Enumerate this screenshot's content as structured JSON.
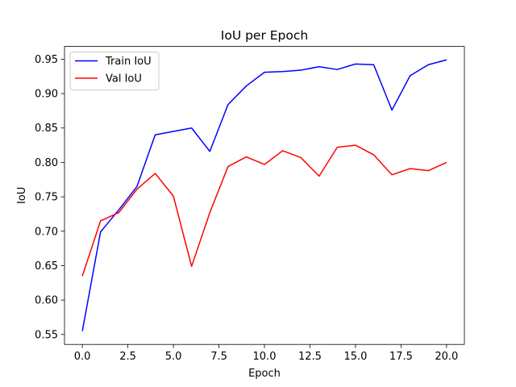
{
  "chart_data": {
    "type": "line",
    "title": "IoU per Epoch",
    "xlabel": "Epoch",
    "ylabel": "IoU",
    "xlim": [
      -0.98,
      20.98
    ],
    "ylim": [
      0.5355,
      0.9685
    ],
    "xticks": [
      0.0,
      2.5,
      5.0,
      7.5,
      10.0,
      12.5,
      15.0,
      17.5,
      20.0
    ],
    "xtick_labels": [
      "0.0",
      "2.5",
      "5.0",
      "7.5",
      "10.0",
      "12.5",
      "15.0",
      "17.5",
      "20.0"
    ],
    "yticks": [
      0.55,
      0.6,
      0.65,
      0.7,
      0.75,
      0.8,
      0.85,
      0.9,
      0.95
    ],
    "ytick_labels": [
      "0.55",
      "0.60",
      "0.65",
      "0.70",
      "0.75",
      "0.80",
      "0.85",
      "0.90",
      "0.95"
    ],
    "grid": false,
    "legend_position": "top-left",
    "x": [
      0,
      1,
      2,
      3,
      4,
      5,
      6,
      7,
      8,
      9,
      10,
      11,
      12,
      13,
      14,
      15,
      16,
      17,
      18,
      19,
      20
    ],
    "series": [
      {
        "name": "Train IoU",
        "color": "#0000ff",
        "values": [
          0.555,
          0.699,
          0.731,
          0.765,
          0.84,
          0.845,
          0.85,
          0.816,
          0.884,
          0.911,
          0.931,
          0.932,
          0.934,
          0.939,
          0.935,
          0.943,
          0.942,
          0.876,
          0.926,
          0.942,
          0.949
        ]
      },
      {
        "name": "Val IoU",
        "color": "#ff0000",
        "values": [
          0.635,
          0.715,
          0.727,
          0.761,
          0.784,
          0.751,
          0.649,
          0.727,
          0.794,
          0.808,
          0.797,
          0.817,
          0.807,
          0.78,
          0.822,
          0.825,
          0.811,
          0.782,
          0.791,
          0.788,
          0.8
        ]
      }
    ]
  }
}
